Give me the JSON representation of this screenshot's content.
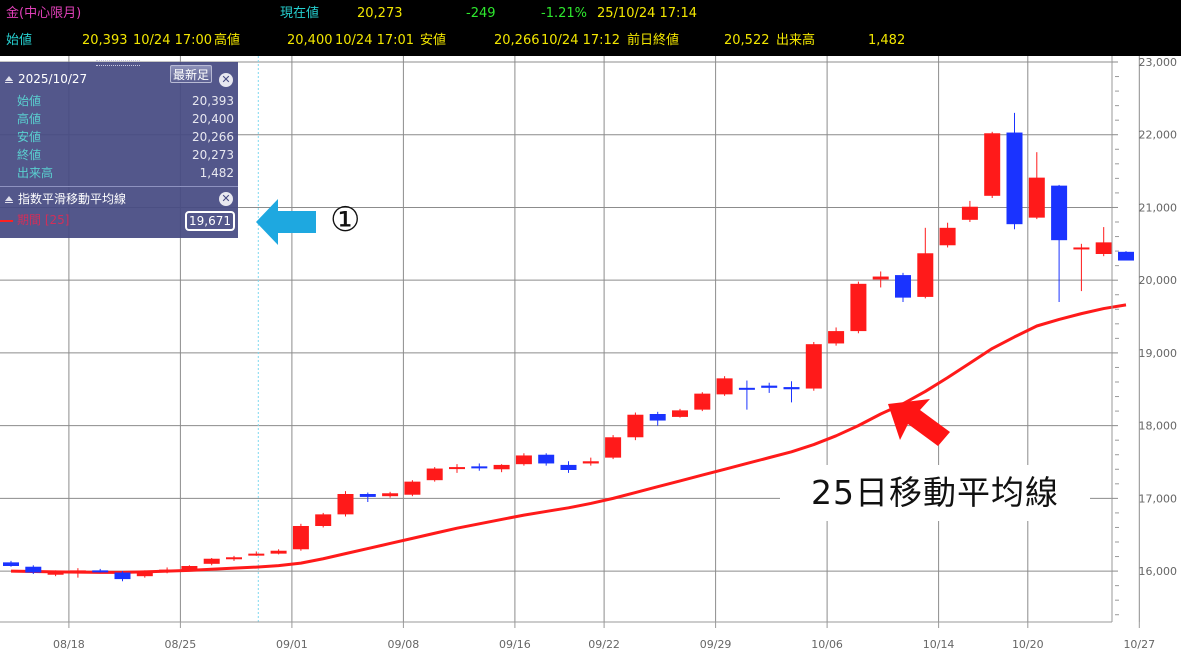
{
  "header": {
    "title": "金(中心限月)",
    "current_label": "現在値",
    "current_value": "20,273",
    "change": "-249",
    "change_pct": "-1.21%",
    "datetime": "25/10/24  17:14",
    "open_label": "始値",
    "open_value": "20,393",
    "open_time": "10/24  17:00",
    "high_label": "高値",
    "high_value": "20,400",
    "high_time": "10/24  17:01",
    "low_label": "安値",
    "low_value": "20,266",
    "low_time": "10/24  17:12",
    "prev_close_label": "前日終値",
    "prev_close_value": "20,522",
    "volume_label": "出来高",
    "volume_value": "1,482"
  },
  "panel": {
    "date": "2025/10/27",
    "latest_button": "最新足",
    "close_symbol": "✕",
    "rows": [
      {
        "label": "始値",
        "value": "20,393"
      },
      {
        "label": "高値",
        "value": "20,400"
      },
      {
        "label": "安値",
        "value": "20,266"
      },
      {
        "label": "終値",
        "value": "20,273"
      },
      {
        "label": "出来高",
        "value": "1,482"
      }
    ],
    "indicator_title": "指数平滑移動平均線",
    "period_label": "期間 [25]",
    "period_value": "19,671"
  },
  "annotations": {
    "marker": "①",
    "ma_label": "25日移動平均線"
  },
  "colors": {
    "up": "#ff1a1a",
    "down": "#1a33ff",
    "ma": "#ff1a1a",
    "grid": "#8c8c8c",
    "header_bg": "#000000",
    "panel_bg": "#464a82",
    "callout_arrow": "#1ea8e0"
  },
  "icons": {
    "panel_collapse": "triangle-up-icon",
    "panel_close": "close-circle-icon",
    "callout_arrow": "arrow-left-icon",
    "ma_arrow": "arrow-up-left-icon"
  },
  "chart_data": {
    "type": "candlestick",
    "title": "",
    "xlabel": "",
    "ylabel": "",
    "ylim": [
      15300,
      23000
    ],
    "y_ticks": [
      "16,000",
      "17,000",
      "18,000",
      "19,000",
      "20,000",
      "21,000",
      "22,000",
      "23,000"
    ],
    "x_ticks": [
      {
        "index": 3,
        "label": "08/18"
      },
      {
        "index": 8,
        "label": "08/25"
      },
      {
        "index": 13,
        "label": "09/01"
      },
      {
        "index": 18,
        "label": "09/08"
      },
      {
        "index": 23,
        "label": "09/16"
      },
      {
        "index": 27,
        "label": "09/22"
      },
      {
        "index": 32,
        "label": "09/29"
      },
      {
        "index": 37,
        "label": "10/06"
      },
      {
        "index": 42,
        "label": "10/14"
      },
      {
        "index": 46,
        "label": "10/20"
      },
      {
        "index": 51,
        "label": "10/27"
      }
    ],
    "cursor_index": 11,
    "candles": [
      {
        "o": 16120,
        "h": 16140,
        "l": 16060,
        "c": 16070
      },
      {
        "o": 16060,
        "h": 16080,
        "l": 15960,
        "c": 15980
      },
      {
        "o": 15950,
        "h": 16010,
        "l": 15930,
        "c": 16000
      },
      {
        "o": 15990,
        "h": 16040,
        "l": 15910,
        "c": 16010
      },
      {
        "o": 16010,
        "h": 16030,
        "l": 15980,
        "c": 15990
      },
      {
        "o": 15980,
        "h": 16000,
        "l": 15860,
        "c": 15890
      },
      {
        "o": 15930,
        "h": 16010,
        "l": 15910,
        "c": 15990
      },
      {
        "o": 15990,
        "h": 16050,
        "l": 15970,
        "c": 16020
      },
      {
        "o": 16020,
        "h": 16080,
        "l": 16010,
        "c": 16070
      },
      {
        "o": 16100,
        "h": 16180,
        "l": 16080,
        "c": 16170
      },
      {
        "o": 16170,
        "h": 16210,
        "l": 16140,
        "c": 16190
      },
      {
        "o": 16230,
        "h": 16270,
        "l": 16210,
        "c": 16240
      },
      {
        "o": 16240,
        "h": 16300,
        "l": 16230,
        "c": 16280
      },
      {
        "o": 16300,
        "h": 16650,
        "l": 16280,
        "c": 16620
      },
      {
        "o": 16620,
        "h": 16800,
        "l": 16600,
        "c": 16780
      },
      {
        "o": 16780,
        "h": 17100,
        "l": 16750,
        "c": 17060
      },
      {
        "o": 17060,
        "h": 17080,
        "l": 16950,
        "c": 17020
      },
      {
        "o": 17030,
        "h": 17090,
        "l": 17010,
        "c": 17070
      },
      {
        "o": 17050,
        "h": 17250,
        "l": 17030,
        "c": 17230
      },
      {
        "o": 17250,
        "h": 17430,
        "l": 17230,
        "c": 17410
      },
      {
        "o": 17410,
        "h": 17470,
        "l": 17350,
        "c": 17430
      },
      {
        "o": 17440,
        "h": 17480,
        "l": 17380,
        "c": 17430
      },
      {
        "o": 17400,
        "h": 17470,
        "l": 17360,
        "c": 17460
      },
      {
        "o": 17470,
        "h": 17620,
        "l": 17450,
        "c": 17590
      },
      {
        "o": 17600,
        "h": 17620,
        "l": 17450,
        "c": 17480
      },
      {
        "o": 17460,
        "h": 17510,
        "l": 17350,
        "c": 17390
      },
      {
        "o": 17480,
        "h": 17560,
        "l": 17450,
        "c": 17510
      },
      {
        "o": 17560,
        "h": 17870,
        "l": 17540,
        "c": 17840
      },
      {
        "o": 17840,
        "h": 18180,
        "l": 17800,
        "c": 18150
      },
      {
        "o": 18160,
        "h": 18190,
        "l": 18000,
        "c": 18070
      },
      {
        "o": 18120,
        "h": 18230,
        "l": 18110,
        "c": 18210
      },
      {
        "o": 18220,
        "h": 18460,
        "l": 18200,
        "c": 18440
      },
      {
        "o": 18430,
        "h": 18680,
        "l": 18410,
        "c": 18650
      },
      {
        "o": 18520,
        "h": 18620,
        "l": 18220,
        "c": 18500
      },
      {
        "o": 18550,
        "h": 18590,
        "l": 18450,
        "c": 18520
      },
      {
        "o": 18530,
        "h": 18610,
        "l": 18320,
        "c": 18500
      },
      {
        "o": 18510,
        "h": 19150,
        "l": 18480,
        "c": 19120
      },
      {
        "o": 19130,
        "h": 19350,
        "l": 19100,
        "c": 19300
      },
      {
        "o": 19300,
        "h": 19980,
        "l": 19270,
        "c": 19950
      },
      {
        "o": 20010,
        "h": 20120,
        "l": 19900,
        "c": 20050
      },
      {
        "o": 20070,
        "h": 20100,
        "l": 19700,
        "c": 19760
      },
      {
        "o": 19770,
        "h": 20720,
        "l": 19750,
        "c": 20370
      },
      {
        "o": 20480,
        "h": 20790,
        "l": 20450,
        "c": 20720
      },
      {
        "o": 20830,
        "h": 21090,
        "l": 20800,
        "c": 21010
      },
      {
        "o": 21160,
        "h": 22040,
        "l": 21130,
        "c": 22020
      },
      {
        "o": 22030,
        "h": 22300,
        "l": 20700,
        "c": 20770
      },
      {
        "o": 20860,
        "h": 21760,
        "l": 20840,
        "c": 21410
      },
      {
        "o": 21300,
        "h": 21310,
        "l": 19700,
        "c": 20550
      },
      {
        "o": 20430,
        "h": 20500,
        "l": 19850,
        "c": 20450
      },
      {
        "o": 20360,
        "h": 20730,
        "l": 20330,
        "c": 20520
      },
      {
        "o": 20390,
        "h": 20400,
        "l": 20270,
        "c": 20270
      }
    ],
    "ma25": [
      16000,
      15995,
      15990,
      15985,
      15982,
      15983,
      15990,
      16000,
      16010,
      16025,
      16040,
      16055,
      16075,
      16110,
      16170,
      16240,
      16310,
      16380,
      16450,
      16520,
      16590,
      16650,
      16710,
      16770,
      16820,
      16870,
      16930,
      17000,
      17080,
      17160,
      17240,
      17320,
      17400,
      17480,
      17560,
      17640,
      17740,
      17860,
      18000,
      18160,
      18300,
      18470,
      18660,
      18860,
      19060,
      19220,
      19370,
      19460,
      19540,
      19610,
      19660
    ]
  }
}
